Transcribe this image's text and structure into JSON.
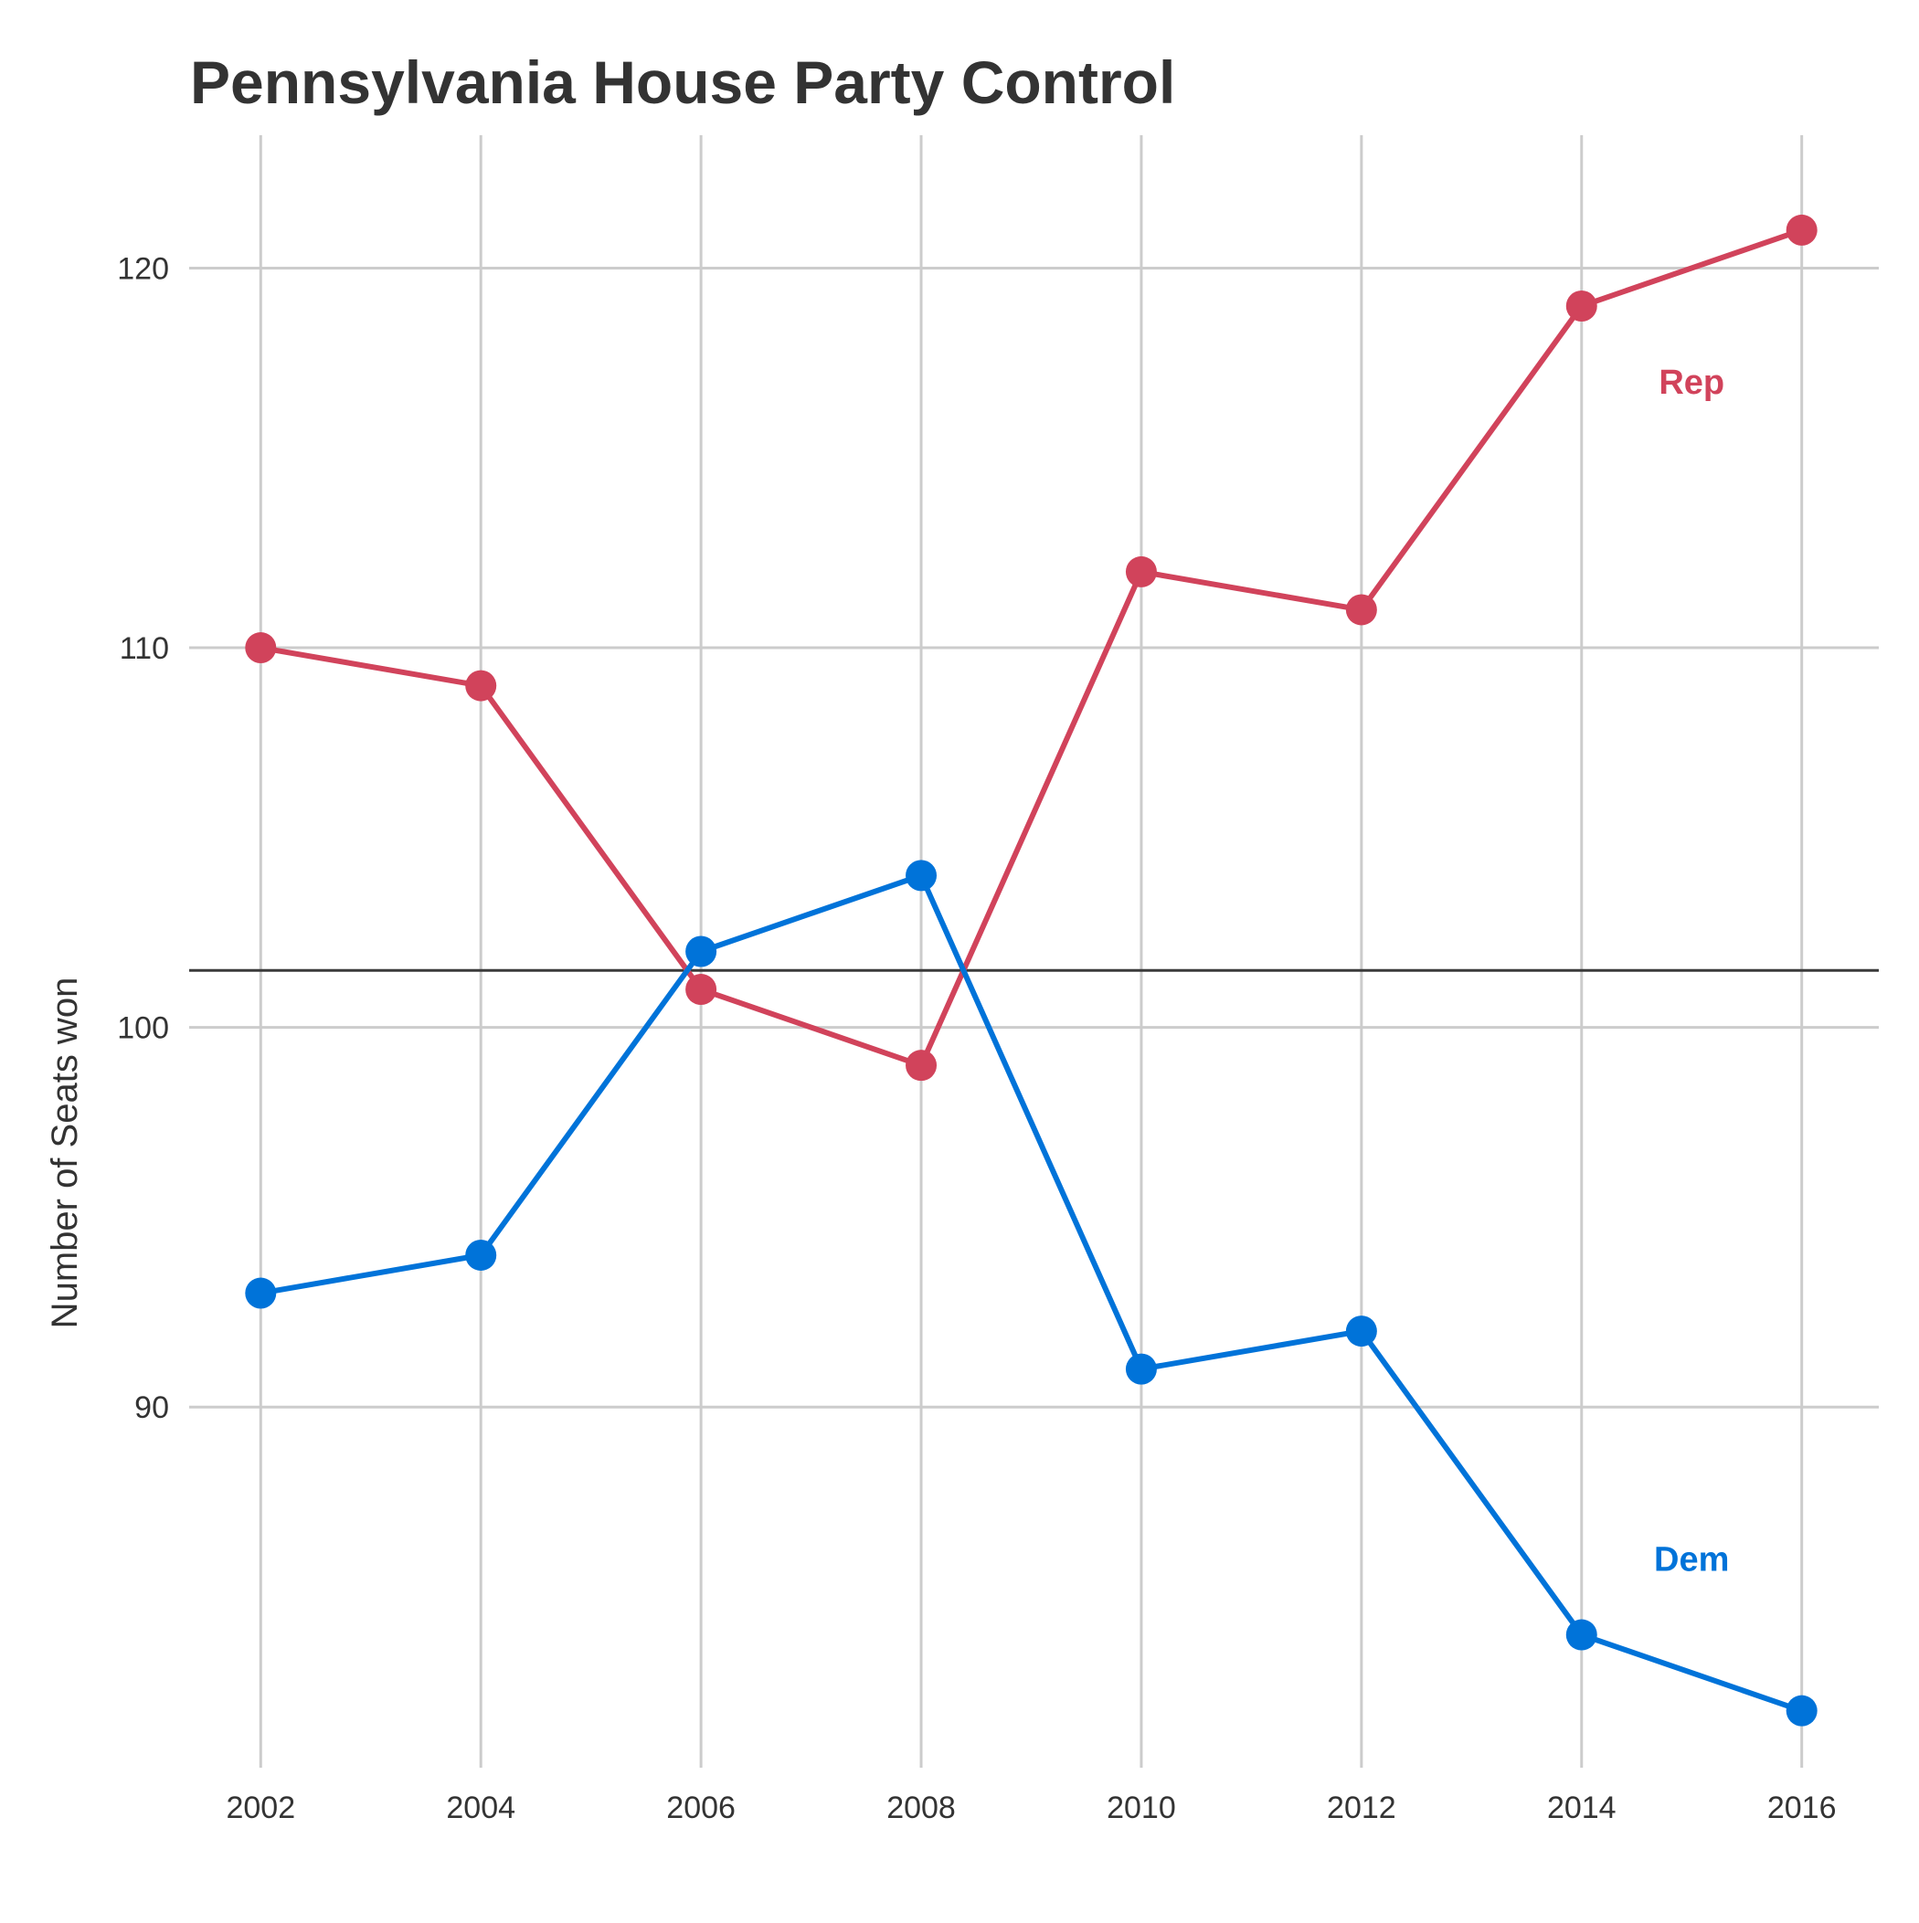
{
  "chart_data": {
    "type": "line",
    "title": "Pennsylvania House Party Control",
    "xlabel": "",
    "ylabel": "Number of Seats won",
    "x": [
      2002,
      2004,
      2006,
      2008,
      2010,
      2012,
      2014,
      2016
    ],
    "x_ticks": [
      "2002",
      "2004",
      "2006",
      "2008",
      "2010",
      "2012",
      "2014",
      "2016"
    ],
    "y_ticks": [
      "90",
      "100",
      "110",
      "120"
    ],
    "xlim": [
      2001.35,
      2016.7
    ],
    "ylim": [
      80.5,
      123.5
    ],
    "reference_line": 101.5,
    "grid": true,
    "series": [
      {
        "name": "Rep",
        "color": "#D1435B",
        "values": [
          110,
          109,
          101,
          99,
          112,
          111,
          119,
          121
        ]
      },
      {
        "name": "Dem",
        "color": "#0073D9",
        "values": [
          93,
          94,
          102,
          104,
          91,
          92,
          84,
          82
        ]
      }
    ],
    "series_label_positions": [
      {
        "series": "Rep",
        "x": 2015.0,
        "y": 117
      },
      {
        "series": "Dem",
        "x": 2015.0,
        "y": 86
      }
    ]
  }
}
